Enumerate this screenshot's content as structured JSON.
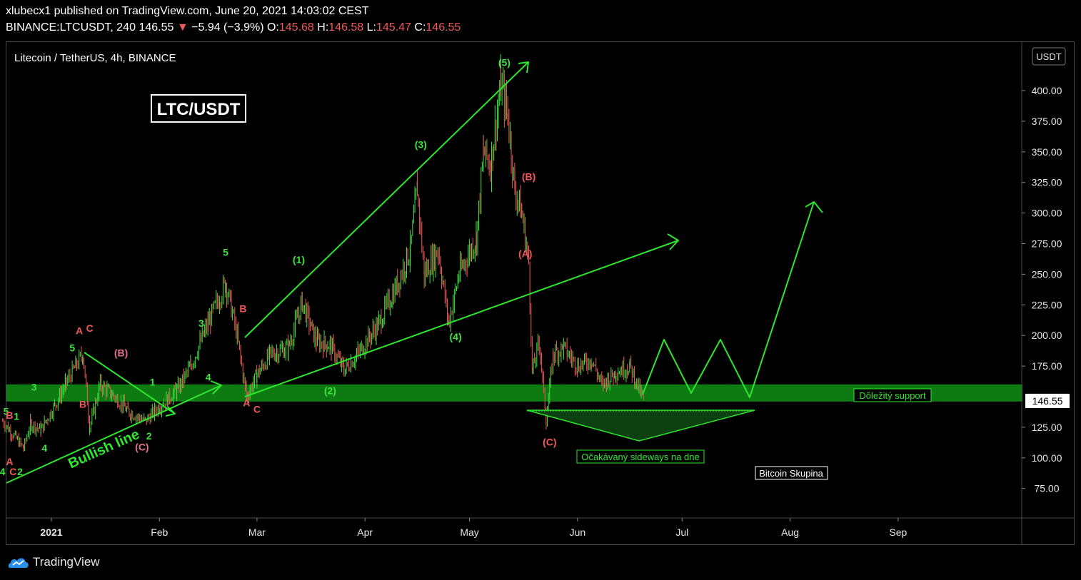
{
  "header": {
    "published_line": "xlubecx1 published on TradingView.com, June 20, 2021 14:03:02 CEST",
    "symbol": "BINANCE:LTCUSDT, 240",
    "last": "146.55",
    "change_arrow": "▼",
    "change": "−5.94 (−3.9%)",
    "o_label": "O:",
    "o_value": "145.68",
    "h_label": "H:",
    "h_value": "146.58",
    "l_label": "L:",
    "l_value": "145.47",
    "c_label": "C:",
    "c_value": "146.55"
  },
  "pane": {
    "legend": "Litecoin / TetherUS, 4h, BINANCE",
    "currency": "USDT",
    "title_box": "LTC/USDT"
  },
  "colors": {
    "up": "#3fe33f",
    "down": "#f0595a",
    "draw": "#2ee62e",
    "zone": "#0d7a12",
    "wave_red": "#f0595a",
    "wave_pink": "#e66f8a"
  },
  "chart_data": {
    "type": "candlestick",
    "yticks": [
      "400.00",
      "375.00",
      "350.00",
      "325.00",
      "300.00",
      "275.00",
      "250.00",
      "225.00",
      "200.00",
      "175.00",
      "125.00",
      "100.00",
      "75.00"
    ],
    "ytick_values": [
      400,
      375,
      350,
      325,
      300,
      275,
      250,
      225,
      200,
      175,
      125,
      100,
      75
    ],
    "last_price_label": "146.55",
    "last_price": 146.55,
    "xticks": [
      {
        "label": "2021",
        "date": "2021-01-01"
      },
      {
        "label": "Feb",
        "date": "2021-02-01"
      },
      {
        "label": "Mar",
        "date": "2021-03-01"
      },
      {
        "label": "Apr",
        "date": "2021-04-01"
      },
      {
        "label": "May",
        "date": "2021-05-01"
      },
      {
        "label": "Jun",
        "date": "2021-06-01"
      },
      {
        "label": "Jul",
        "date": "2021-07-01"
      },
      {
        "label": "Aug",
        "date": "2021-08-01"
      },
      {
        "label": "Sep",
        "date": "2021-09-01"
      }
    ],
    "price_path": [
      [
        "2020-12-18",
        130
      ],
      [
        "2020-12-24",
        108
      ],
      [
        "2020-12-26",
        128
      ],
      [
        "2020-12-29",
        123
      ],
      [
        "2021-01-03",
        148
      ],
      [
        "2021-01-05",
        160
      ],
      [
        "2021-01-10",
        185
      ],
      [
        "2021-01-12",
        125
      ],
      [
        "2021-01-15",
        160
      ],
      [
        "2021-01-20",
        148
      ],
      [
        "2021-01-23",
        138
      ],
      [
        "2021-01-28",
        130
      ],
      [
        "2021-02-01",
        142
      ],
      [
        "2021-02-06",
        155
      ],
      [
        "2021-02-10",
        175
      ],
      [
        "2021-02-15",
        210
      ],
      [
        "2021-02-20",
        243
      ],
      [
        "2021-02-23",
        205
      ],
      [
        "2021-02-26",
        150
      ],
      [
        "2021-03-01",
        168
      ],
      [
        "2021-03-05",
        185
      ],
      [
        "2021-03-10",
        190
      ],
      [
        "2021-03-14",
        227
      ],
      [
        "2021-03-18",
        195
      ],
      [
        "2021-03-22",
        192
      ],
      [
        "2021-03-26",
        172
      ],
      [
        "2021-03-30",
        185
      ],
      [
        "2021-04-05",
        210
      ],
      [
        "2021-04-10",
        240
      ],
      [
        "2021-04-14",
        270
      ],
      [
        "2021-04-16",
        320
      ],
      [
        "2021-04-18",
        250
      ],
      [
        "2021-04-22",
        270
      ],
      [
        "2021-04-25",
        210
      ],
      [
        "2021-04-28",
        250
      ],
      [
        "2021-05-03",
        280
      ],
      [
        "2021-05-05",
        350
      ],
      [
        "2021-05-07",
        340
      ],
      [
        "2021-05-10",
        405
      ],
      [
        "2021-05-12",
        380
      ],
      [
        "2021-05-14",
        320
      ],
      [
        "2021-05-16",
        300
      ],
      [
        "2021-05-18",
        260
      ],
      [
        "2021-05-19",
        170
      ],
      [
        "2021-05-21",
        195
      ],
      [
        "2021-05-23",
        130
      ],
      [
        "2021-05-25",
        185
      ],
      [
        "2021-05-28",
        190
      ],
      [
        "2021-06-01",
        175
      ],
      [
        "2021-06-05",
        180
      ],
      [
        "2021-06-08",
        160
      ],
      [
        "2021-06-12",
        170
      ],
      [
        "2021-06-16",
        175
      ],
      [
        "2021-06-20",
        146.55
      ]
    ],
    "support_zone": {
      "from": 146,
      "to": 160
    },
    "annotations": {
      "support_label": "Dôležitý support",
      "sideways_label": "Očakávaný sideways na dne",
      "bitcoin_label": "Bitcoin Skupina",
      "bullish_label": "Bullish line"
    },
    "wave_labels": [
      {
        "text": "(5)",
        "color": "up",
        "date": "2021-05-11",
        "price": 420
      },
      {
        "text": "(3)",
        "color": "up",
        "date": "2021-04-17",
        "price": 353
      },
      {
        "text": "(1)",
        "color": "up",
        "date": "2021-03-13",
        "price": 259
      },
      {
        "text": "(4)",
        "color": "up",
        "date": "2021-04-27",
        "price": 196
      },
      {
        "text": "(2)",
        "color": "up",
        "date": "2021-03-22",
        "price": 152
      },
      {
        "text": "(B)",
        "color": "down",
        "date": "2021-05-18",
        "price": 327
      },
      {
        "text": "(A)",
        "color": "down",
        "date": "2021-05-17",
        "price": 264
      },
      {
        "text": "(C)",
        "color": "down",
        "date": "2021-05-24",
        "price": 110
      },
      {
        "text": "5",
        "color": "up",
        "date": "2021-02-20",
        "price": 265
      },
      {
        "text": "3",
        "color": "up",
        "date": "2021-02-13",
        "price": 207
      },
      {
        "text": "4",
        "color": "up",
        "date": "2021-02-15",
        "price": 163
      },
      {
        "text": "B",
        "color": "down",
        "date": "2021-02-25",
        "price": 219
      },
      {
        "text": "A",
        "color": "down",
        "date": "2021-02-26",
        "price": 142
      },
      {
        "text": "C",
        "color": "down",
        "date": "2021-03-01",
        "price": 137
      },
      {
        "text": "1",
        "color": "up",
        "date": "2021-01-30",
        "price": 159
      },
      {
        "text": "2",
        "color": "up",
        "date": "2021-01-29",
        "price": 115
      },
      {
        "text": "(B)",
        "color": "pink",
        "date": "2021-01-21",
        "price": 183
      },
      {
        "text": "(C)",
        "color": "pink",
        "date": "2021-01-27",
        "price": 106
      },
      {
        "text": "A",
        "color": "down",
        "date": "2021-01-09",
        "price": 201
      },
      {
        "text": "C",
        "color": "down",
        "date": "2021-01-12",
        "price": 203
      },
      {
        "text": "5",
        "color": "up",
        "date": "2021-01-07",
        "price": 187
      },
      {
        "text": "B",
        "color": "down",
        "date": "2021-01-10",
        "price": 141
      },
      {
        "text": "3",
        "color": "up",
        "date": "2020-12-27",
        "price": 155
      },
      {
        "text": "4",
        "color": "up",
        "date": "2020-12-30",
        "price": 105
      },
      {
        "text": "5",
        "color": "up",
        "date": "2020-12-19",
        "price": 135
      },
      {
        "text": "B",
        "color": "down",
        "date": "2020-12-20",
        "price": 132
      },
      {
        "text": "1",
        "color": "up",
        "date": "2020-12-22",
        "price": 131
      },
      {
        "text": "4",
        "color": "up",
        "date": "2020-12-18",
        "price": 86
      },
      {
        "text": "A",
        "color": "down",
        "date": "2020-12-20",
        "price": 94
      },
      {
        "text": "C",
        "color": "down",
        "date": "2020-12-21",
        "price": 86
      },
      {
        "text": "2",
        "color": "up",
        "date": "2020-12-23",
        "price": 86
      }
    ]
  },
  "brand": {
    "name": "TradingView"
  }
}
